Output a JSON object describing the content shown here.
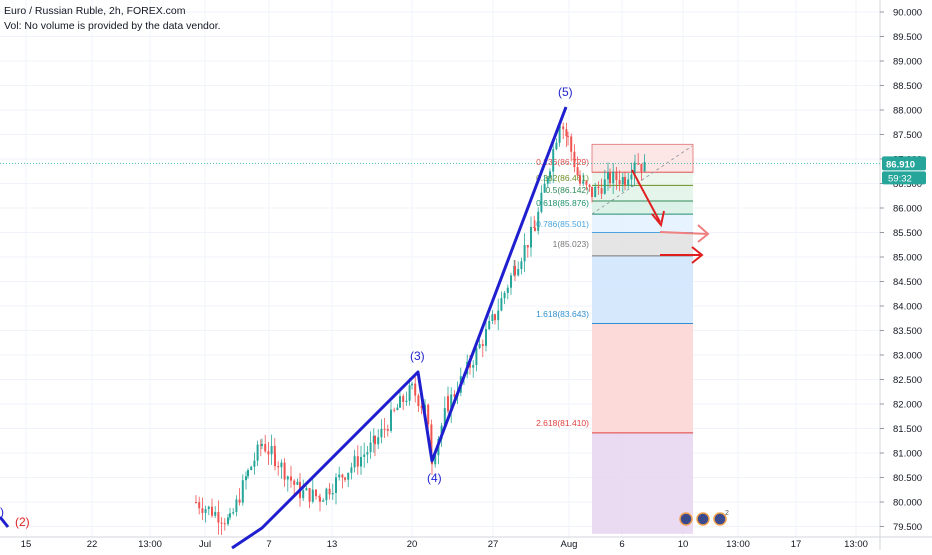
{
  "header": {
    "title": "Euro / Russian Ruble, 2h, FOREX.com",
    "volume_note": "Vol: No volume is provided by the data vendor."
  },
  "price_axis": {
    "ticks": [
      "90.000",
      "89.500",
      "89.000",
      "88.500",
      "88.000",
      "87.500",
      "87.000",
      "86.500",
      "86.000",
      "85.500",
      "85.000",
      "84.500",
      "84.000",
      "83.500",
      "83.000",
      "82.500",
      "82.000",
      "81.500",
      "81.000",
      "80.500",
      "80.000",
      "79.500"
    ],
    "current_price": "86.910",
    "countdown": "59:32"
  },
  "time_axis": {
    "ticks": [
      "15",
      "22",
      "13:00",
      "Jul",
      "7",
      "13",
      "20",
      "27",
      "Aug",
      "6",
      "10",
      "13:00",
      "17",
      "13:00"
    ]
  },
  "wave_labels": [
    "(2)",
    "(3)",
    "(4)",
    "(5)"
  ],
  "fib_labels": [
    "0.236(86.729)",
    "0.382(86.461)",
    "0.5(86.142)",
    "0.618(85.876)",
    "0.786(85.501)",
    "1(85.023)",
    "1.618(83.643)",
    "2.618(81.410)"
  ],
  "colors": {
    "wave_line": "#1f1fcf",
    "wave_label": "#1f1fcf",
    "wave_label_red": "#e02020",
    "up_candle": "#26a69a",
    "down_candle": "#ef5350",
    "price_badge": "#26a69a",
    "arrow": "#e02020",
    "arrow_faded": "#f08080"
  },
  "chart_data": {
    "type": "candlestick",
    "symbol": "Euro / Russian Ruble, 2h, FOREX.com",
    "ylim": [
      79.4,
      90.2
    ],
    "current_price": 86.91,
    "elliott_wave_points": [
      {
        "label": "(2)",
        "price": 79.3
      },
      {
        "label": "(3)",
        "price": 82.62
      },
      {
        "label": "(4)",
        "price": 80.8
      },
      {
        "label": "(5)",
        "price": 88.05
      }
    ],
    "fibonacci_levels": [
      {
        "ratio": 0.236,
        "price": 86.729
      },
      {
        "ratio": 0.382,
        "price": 86.461
      },
      {
        "ratio": 0.5,
        "price": 86.142
      },
      {
        "ratio": 0.618,
        "price": 85.876
      },
      {
        "ratio": 0.786,
        "price": 85.501
      },
      {
        "ratio": 1,
        "price": 85.023
      },
      {
        "ratio": 1.618,
        "price": 83.643
      },
      {
        "ratio": 2.618,
        "price": 81.41
      }
    ],
    "grid": true
  }
}
